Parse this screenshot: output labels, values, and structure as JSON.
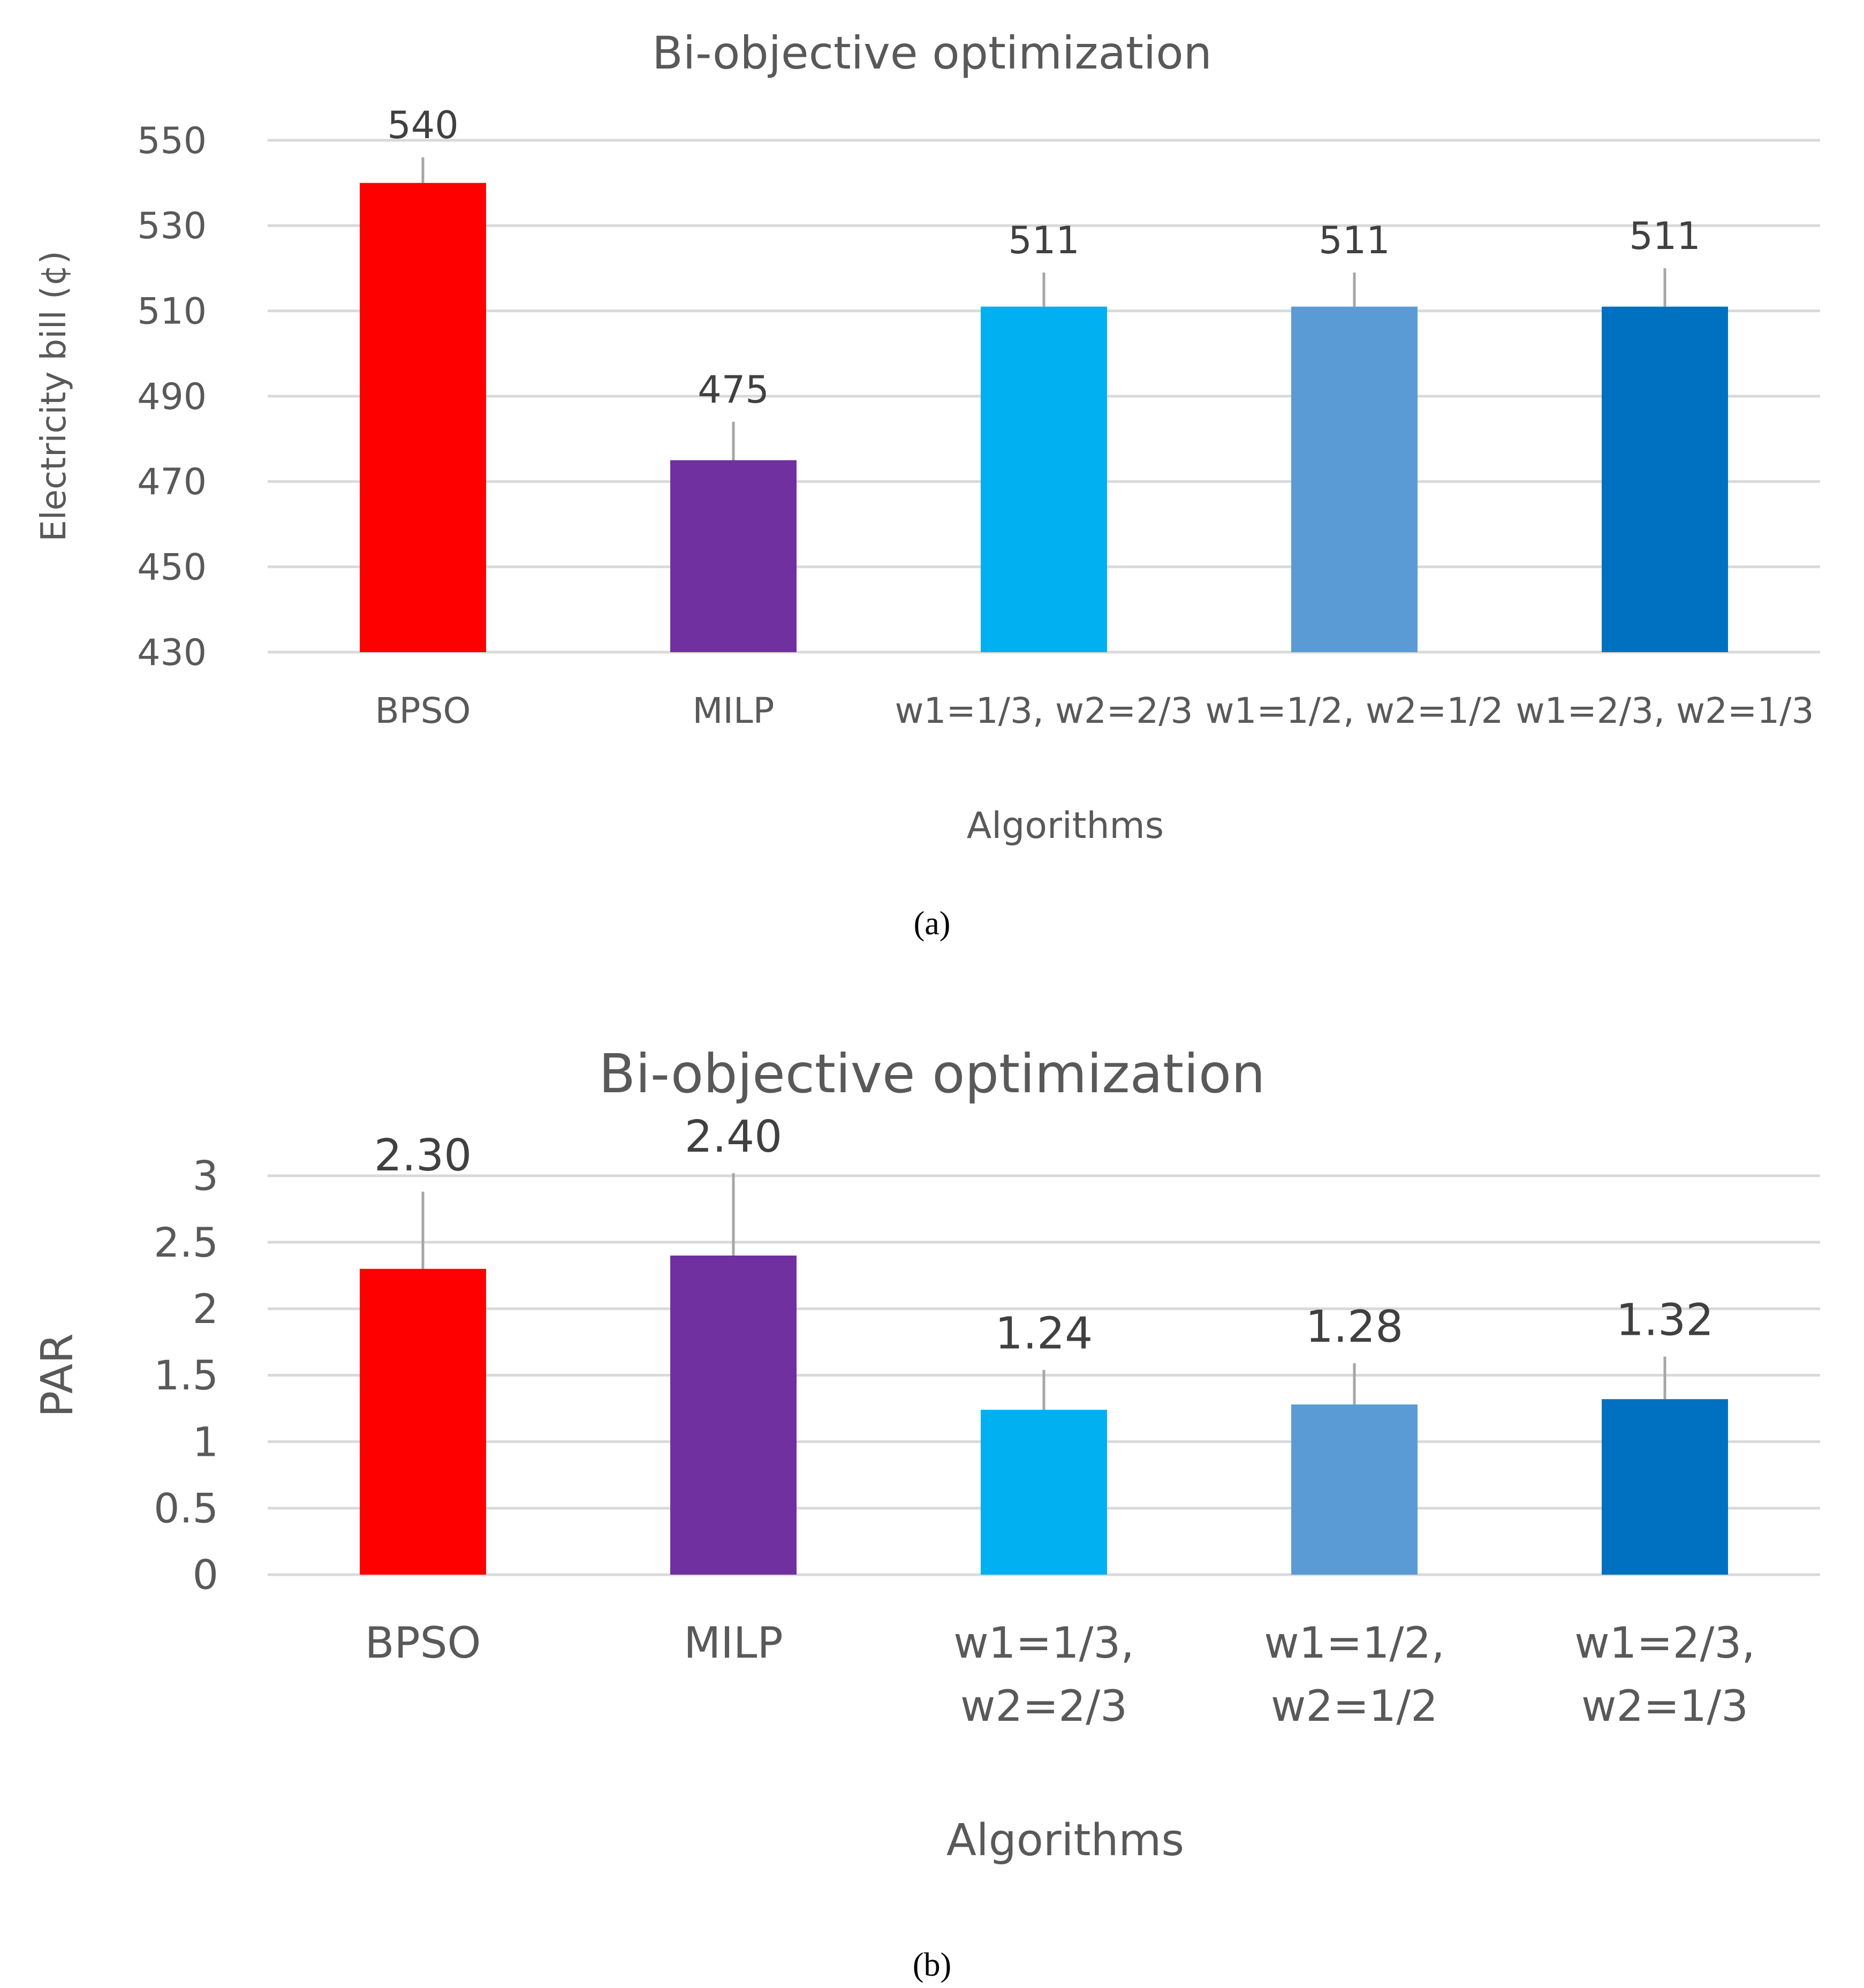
{
  "figure": {
    "captions": [
      "(a)",
      "(b)"
    ]
  },
  "colors": {
    "BPSO": "#FF0000",
    "MILP": "#7030A0",
    "w1=1/3, w2=2/3": "#00B0F0",
    "w1=1/2, w2=1/2": "#5B9BD5",
    "w1=2/3, w2=1/3": "#0070C0",
    "grid": "#D9D9D9",
    "error_bar": "#A6A6A6",
    "text": "#595959"
  },
  "chart_data": [
    {
      "type": "bar",
      "title": "Bi-objective optimization",
      "xlabel": "Algorithms",
      "ylabel": "Electricity bill (¢)",
      "categories": [
        "BPSO",
        "MILP",
        "w1=1/3, w2=2/3",
        "w1=1/2, w2=1/2",
        "w1=2/3, w2=1/3"
      ],
      "values": [
        540,
        475,
        511,
        511,
        511
      ],
      "data_labels": [
        "540",
        "475",
        "511",
        "511",
        "511"
      ],
      "error_plus": [
        6,
        9,
        8,
        8,
        9
      ],
      "ylim": [
        430,
        550
      ],
      "yticks": [
        430,
        450,
        470,
        490,
        510,
        530,
        550
      ],
      "grid": true,
      "legend": "none"
    },
    {
      "type": "bar",
      "title": "Bi-objective optimization",
      "xlabel": "Algorithms",
      "ylabel": "PAR",
      "categories": [
        "BPSO",
        "MILP",
        "w1=1/3, w2=2/3",
        "w1=1/2, w2=1/2",
        "w1=2/3, w2=1/3"
      ],
      "category_lines": [
        [
          "BPSO"
        ],
        [
          "MILP"
        ],
        [
          "w1=1/3,",
          "w2=2/3"
        ],
        [
          "w1=1/2,",
          "w2=1/2"
        ],
        [
          "w1=2/3,",
          "w2=1/3"
        ]
      ],
      "values": [
        2.3,
        2.4,
        1.24,
        1.28,
        1.32
      ],
      "data_labels": [
        "2.30",
        "2.40",
        "1.24",
        "1.28",
        "1.32"
      ],
      "error_plus": [
        0.58,
        0.62,
        0.3,
        0.31,
        0.32
      ],
      "ylim": [
        0,
        3
      ],
      "yticks": [
        0,
        0.5,
        1,
        1.5,
        2,
        2.5,
        3
      ],
      "ytick_labels": [
        "0",
        "0.5",
        "1",
        "1.5",
        "2",
        "2.5",
        "3"
      ],
      "grid": true,
      "legend": "none"
    }
  ]
}
